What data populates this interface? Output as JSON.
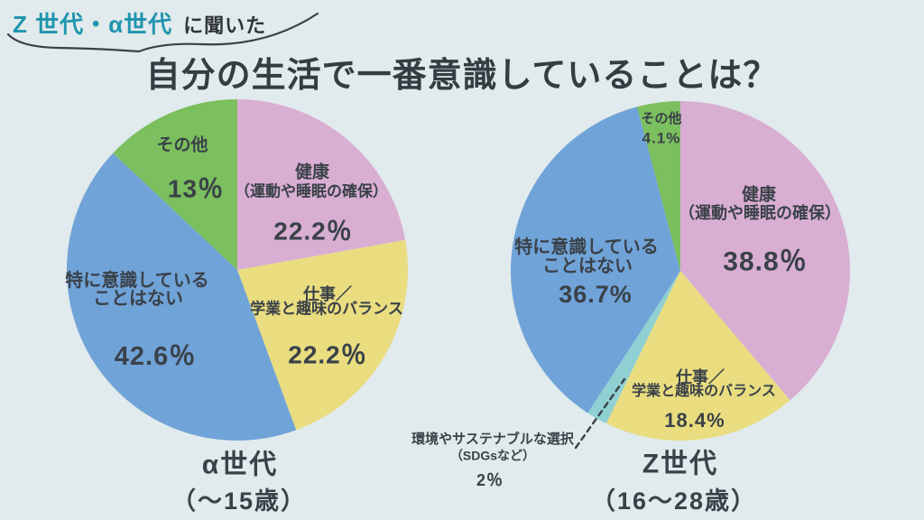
{
  "page": {
    "background_color": "#e1eaec",
    "text_color": "#3a4148"
  },
  "header": {
    "highlight": "Z 世代・α世代",
    "highlight_color": "#1f95ae",
    "suffix": "に聞いた",
    "title": "自分の生活で一番意識していることは？"
  },
  "charts": {
    "alpha": {
      "caption1": "α世代",
      "caption2": "（～15歳）",
      "slices": {
        "health": {
          "name": "健康",
          "sub": "（運動や睡眠の確保）",
          "pct": "22.2％"
        },
        "work": {
          "name": "仕事／",
          "sub": "学業と趣味のバランス",
          "pct": "22.2％"
        },
        "none": {
          "line1": "特に意識している",
          "line2": "ことはない",
          "pct": "42.6％"
        },
        "other": {
          "name": "その他",
          "pct": "13％"
        }
      }
    },
    "z": {
      "caption1": "Z世代",
      "caption2": "（16～28歳）",
      "slices": {
        "health": {
          "name": "健康",
          "sub": "（運動や睡眠の確保）",
          "pct": "38.8％"
        },
        "work": {
          "name": "仕事／",
          "sub": "学業と趣味のバランス",
          "pct": "18.4%"
        },
        "sdgs": {
          "line1": "環境やサステナブルな選択",
          "line2": "（SDGsなど）",
          "pct": "2％"
        },
        "none": {
          "line1": "特に意識している",
          "line2": "ことはない",
          "pct": "36.7%"
        },
        "other": {
          "name": "その他",
          "pct": "4.1%"
        }
      }
    }
  },
  "chart_data": [
    {
      "type": "pie",
      "title": "α世代（～15歳）",
      "start_angle_deg": 0,
      "direction": "clockwise",
      "categories": [
        "健康（運動や睡眠の確保）",
        "仕事／学業と趣味のバランス",
        "特に意識していることはない",
        "その他"
      ],
      "values": [
        22.2,
        22.2,
        42.6,
        13
      ],
      "colors": [
        "#d9aed3",
        "#e9dd80",
        "#70a3d8",
        "#7bbf5e"
      ]
    },
    {
      "type": "pie",
      "title": "Z世代（16～28歳）",
      "start_angle_deg": 0,
      "direction": "clockwise",
      "categories": [
        "健康（運動や睡眠の確保）",
        "仕事／学業と趣味のバランス",
        "環境やサステナブルな選択（SDGsなど）",
        "特に意識していることはない",
        "その他"
      ],
      "values": [
        38.8,
        18.4,
        2,
        36.7,
        4.1
      ],
      "colors": [
        "#d9aed3",
        "#e9dd80",
        "#8fd0d2",
        "#70a3d8",
        "#7bbf5e"
      ]
    }
  ]
}
